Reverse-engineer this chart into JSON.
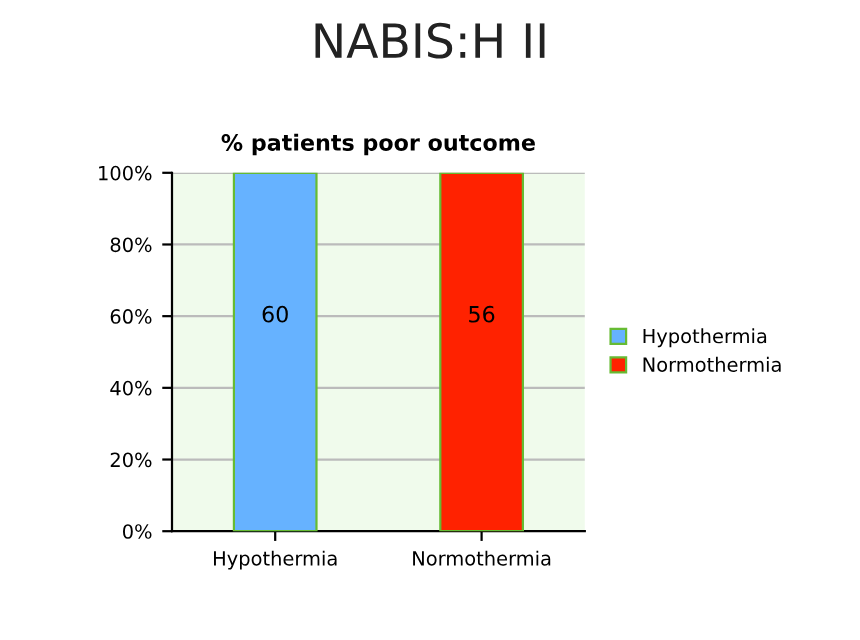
{
  "chart_data": {
    "type": "bar",
    "title": "% patients poor outcome",
    "subtitle": "NABIS:H II",
    "categories": [
      "Hypothermia",
      "Normothermia"
    ],
    "series": [
      {
        "name": "Hypothermia",
        "color": "#66b2ff",
        "values": [
          100,
          null
        ]
      },
      {
        "name": "Normothermia",
        "color": "#ff2200",
        "values": [
          null,
          100
        ]
      }
    ],
    "annotations": [
      "60",
      "56"
    ],
    "ylim": [
      0,
      100
    ],
    "yticks": [
      {
        "value": 0,
        "label": "0%"
      },
      {
        "value": 20,
        "label": "20%"
      },
      {
        "value": 40,
        "label": "40%"
      },
      {
        "value": 60,
        "label": "60%"
      },
      {
        "value": 80,
        "label": "80%"
      },
      {
        "value": 100,
        "label": "100%"
      }
    ],
    "grid": "y",
    "legend": "right"
  }
}
